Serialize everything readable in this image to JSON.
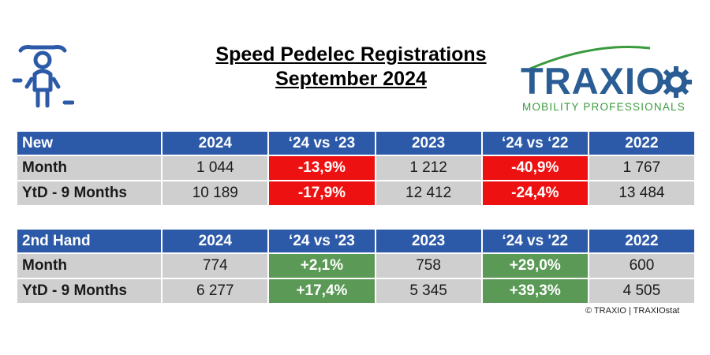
{
  "title": {
    "line1": "Speed Pedelec Registrations",
    "line2": "September 2024"
  },
  "logo": {
    "name": "TRAXIO",
    "tagline": "MOBILITY PROFESSIONALS",
    "icon": "gear-icon"
  },
  "icon": "speed-pedelec-rider-icon",
  "colors": {
    "header": "#2c5aa8",
    "negative": "#ee1111",
    "positive": "#5b9a56",
    "cell": "#cfcfcf"
  },
  "new_table": {
    "headers": [
      "New",
      "2024",
      "‘24 vs ‘23",
      "2023",
      "‘24 vs ‘22",
      "2022"
    ],
    "rows": [
      [
        "Month",
        "1 044",
        "-13,9%",
        "1 212",
        "-40,9%",
        "1 767"
      ],
      [
        "YtD - 9 Months",
        "10 189",
        "-17,9%",
        "12 412",
        "-24,4%",
        "13 484"
      ]
    ]
  },
  "used_table": {
    "headers": [
      "2nd Hand",
      "2024",
      "‘24 vs '23",
      "2023",
      "‘24 vs '22",
      "2022"
    ],
    "rows": [
      [
        "Month",
        "774",
        "+2,1%",
        "758",
        "+29,0%",
        "600"
      ],
      [
        "YtD - 9 Months",
        "6 277",
        "+17,4%",
        "5 345",
        "+39,3%",
        "4 505"
      ]
    ]
  },
  "credit": "© TRAXIO | TRAXIOstat"
}
